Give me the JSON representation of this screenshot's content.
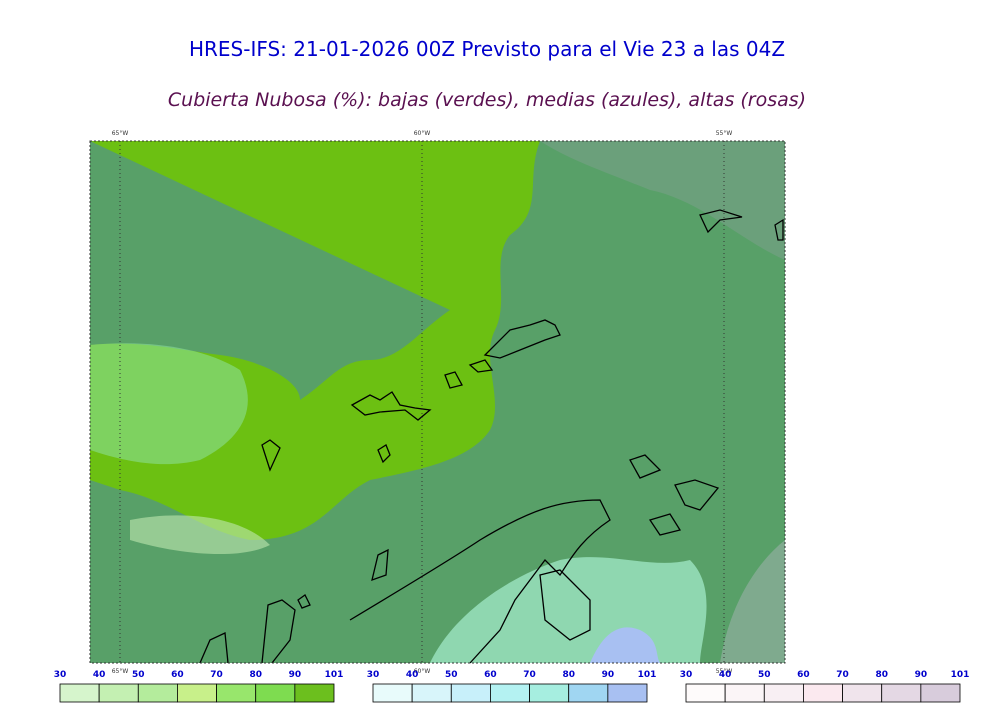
{
  "header": {
    "title": "HRES-IFS: 21-01-2026 00Z Previsto para el Vie 23 a las 04Z",
    "subtitle": "Cubierta Nubosa (%): bajas (verdes), medias (azules), altas (rosas)"
  },
  "map": {
    "lon_labels": [
      "65°W",
      "60°W",
      "55°W"
    ]
  },
  "colorbars": [
    {
      "labels": [
        30,
        40,
        50,
        60,
        70,
        80,
        90,
        101
      ],
      "colors": [
        "#d6f5cc",
        "#c4f0b2",
        "#b4ec9c",
        "#c8f08a",
        "#98e66c",
        "#7edc50",
        "#6cbf1e"
      ]
    },
    {
      "labels": [
        30,
        40,
        50,
        60,
        70,
        80,
        90,
        101
      ],
      "colors": [
        "#e8fbfb",
        "#d8f5fa",
        "#c8f0fa",
        "#b4f2f2",
        "#a6eee0",
        "#a0d6f2",
        "#a8c0f2"
      ]
    },
    {
      "labels": [
        30,
        40,
        50,
        60,
        70,
        80,
        90,
        101
      ],
      "colors": [
        "#fefbfb",
        "#fbf5f7",
        "#f8eff3",
        "#fbe9ef",
        "#f0e4ec",
        "#e4d8e4",
        "#d8ccdc"
      ]
    }
  ]
}
